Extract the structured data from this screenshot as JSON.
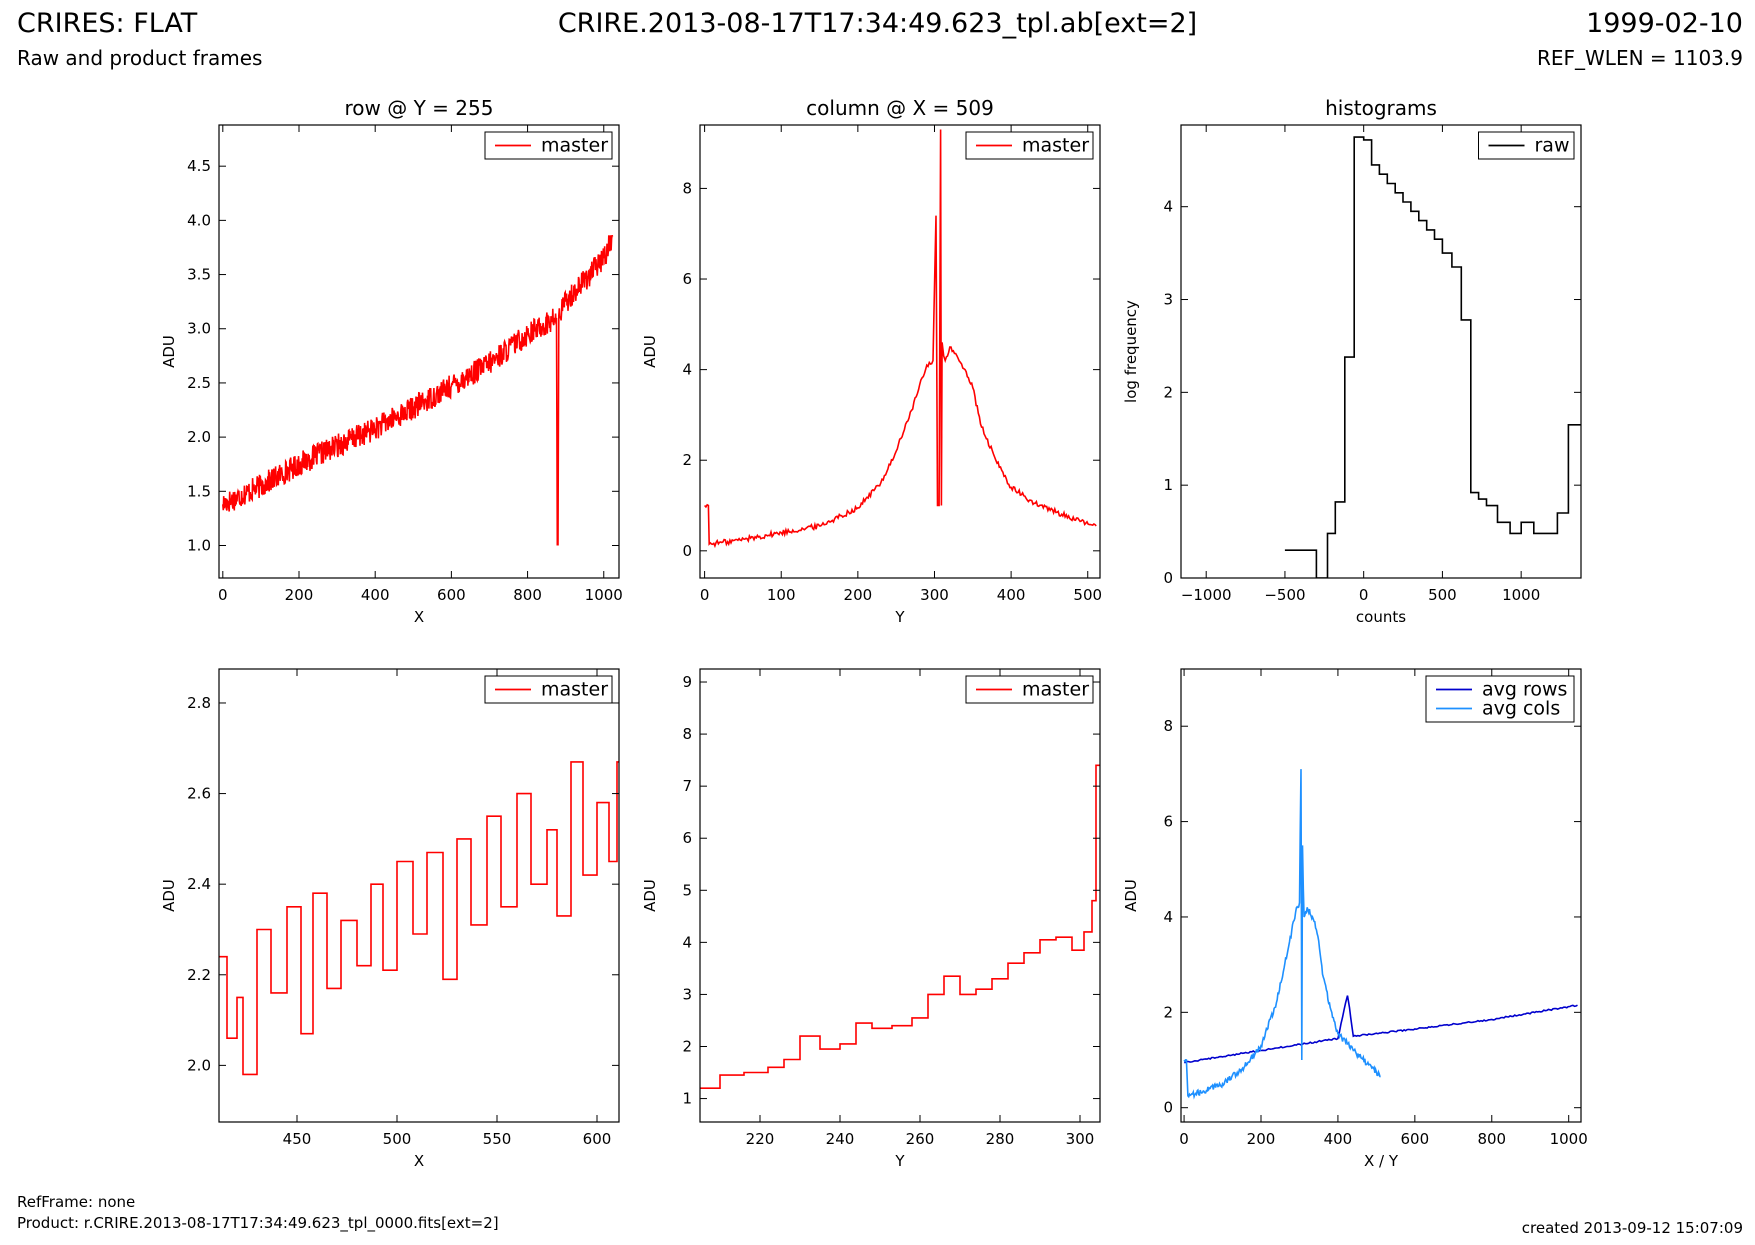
{
  "header": {
    "title_left": "CRIRES: FLAT",
    "subtitle_left": "Raw and product frames",
    "title_center": "CRIRE.2013-08-17T17:34:49.623_tpl.ab[ext=2]",
    "title_right": "1999-02-10",
    "subtitle_right": "REF_WLEN = 1103.9"
  },
  "footer": {
    "ref_frame": "RefFrame: none",
    "product": "Product: r.CRIRE.2013-08-17T17:34:49.623_tpl_0000.fits[ext=2]",
    "created": "created 2013-09-12 15:07:09"
  },
  "colors": {
    "master": "#ff0000",
    "raw": "#000000",
    "avg_rows": "#0000cd",
    "avg_cols": "#1e90ff"
  },
  "chart_data": [
    {
      "id": "row",
      "type": "line",
      "title": "row @ Y = 255",
      "xlabel": "X",
      "ylabel": "ADU",
      "xlim": [
        -10,
        1040
      ],
      "ylim": [
        0.7,
        4.88
      ],
      "xticks": [
        0,
        200,
        400,
        600,
        800,
        1000
      ],
      "yticks": [
        1.0,
        1.5,
        2.0,
        2.5,
        3.0,
        3.5,
        4.0,
        4.5
      ],
      "ytick_labels": [
        "1.0",
        "1.5",
        "2.0",
        "2.5",
        "3.0",
        "3.5",
        "4.0",
        "4.5"
      ],
      "legend": "top-right",
      "series": [
        {
          "name": "master",
          "color": "#ff0000",
          "x": [
            0,
            100,
            200,
            300,
            400,
            500,
            600,
            700,
            800,
            876,
            878,
            880,
            882,
            900,
            1000,
            1023
          ],
          "y": [
            1.38,
            1.55,
            1.75,
            1.92,
            2.08,
            2.27,
            2.47,
            2.68,
            2.95,
            3.1,
            1.0,
            1.0,
            3.12,
            3.25,
            3.65,
            3.85
          ]
        }
      ]
    },
    {
      "id": "column",
      "type": "line",
      "title": "column @ X = 509",
      "xlabel": "Y",
      "ylabel": "ADU",
      "xlim": [
        -6,
        516
      ],
      "ylim": [
        -0.6,
        9.4
      ],
      "xticks": [
        0,
        100,
        200,
        300,
        400,
        500
      ],
      "yticks": [
        0,
        2,
        4,
        6,
        8
      ],
      "legend": "top-right",
      "series": [
        {
          "name": "master",
          "color": "#ff0000",
          "x": [
            0,
            5,
            6,
            30,
            60,
            100,
            150,
            200,
            230,
            250,
            270,
            290,
            298,
            302,
            304,
            306,
            308,
            309,
            310,
            312,
            314,
            320,
            340,
            350,
            360,
            380,
            400,
            430,
            460,
            490,
            511
          ],
          "y": [
            1.0,
            1.0,
            0.15,
            0.2,
            0.28,
            0.4,
            0.55,
            0.95,
            1.5,
            2.2,
            3.1,
            4.1,
            4.2,
            7.4,
            1.0,
            1.0,
            9.3,
            1.0,
            4.6,
            4.3,
            4.2,
            4.5,
            4.0,
            3.6,
            2.8,
            2.0,
            1.4,
            1.05,
            0.85,
            0.65,
            0.55
          ]
        }
      ]
    },
    {
      "id": "histograms",
      "type": "line",
      "title": "histograms",
      "xlabel": "counts",
      "ylabel": "log frequency",
      "xlim": [
        -1160,
        1380
      ],
      "ylim": [
        0,
        4.88
      ],
      "xticks": [
        -1000,
        -500,
        0,
        500,
        1000
      ],
      "xtick_labels": [
        "−1000",
        "−500",
        "0",
        "500",
        "1000"
      ],
      "yticks": [
        0,
        1,
        2,
        3,
        4
      ],
      "legend": "top-right",
      "series": [
        {
          "name": "raw",
          "color": "#000000",
          "step": true,
          "x": [
            -500,
            -300,
            -230,
            -180,
            -120,
            -60,
            0,
            50,
            100,
            150,
            200,
            250,
            300,
            350,
            400,
            450,
            500,
            560,
            620,
            680,
            730,
            780,
            850,
            930,
            1000,
            1080,
            1230,
            1300,
            1380
          ],
          "y": [
            0.3,
            0,
            0.48,
            0.82,
            2.38,
            4.75,
            4.72,
            4.45,
            4.35,
            4.25,
            4.15,
            4.05,
            3.95,
            3.85,
            3.75,
            3.65,
            3.5,
            3.35,
            2.78,
            0.92,
            0.85,
            0.78,
            0.6,
            0.48,
            0.6,
            0.48,
            0.7,
            1.65,
            1.65
          ]
        }
      ]
    },
    {
      "id": "row-zoom",
      "type": "line",
      "title": "",
      "xlabel": "X",
      "ylabel": "ADU",
      "xlim": [
        411,
        611
      ],
      "ylim": [
        1.875,
        2.875
      ],
      "xticks": [
        450,
        500,
        550,
        600
      ],
      "yticks": [
        2.0,
        2.2,
        2.4,
        2.6,
        2.8
      ],
      "ytick_labels": [
        "2.0",
        "2.2",
        "2.4",
        "2.6",
        "2.8"
      ],
      "legend": "top-right",
      "series": [
        {
          "name": "master",
          "color": "#ff0000",
          "step": true,
          "x": [
            411,
            415,
            420,
            423,
            430,
            437,
            445,
            452,
            458,
            465,
            472,
            480,
            487,
            493,
            500,
            508,
            515,
            523,
            530,
            537,
            545,
            552,
            560,
            567,
            575,
            580,
            587,
            593,
            600,
            606,
            610
          ],
          "y": [
            2.24,
            2.06,
            2.15,
            1.98,
            2.3,
            2.16,
            2.35,
            2.07,
            2.38,
            2.17,
            2.32,
            2.22,
            2.4,
            2.21,
            2.45,
            2.29,
            2.47,
            2.19,
            2.5,
            2.31,
            2.55,
            2.35,
            2.6,
            2.4,
            2.52,
            2.33,
            2.67,
            2.42,
            2.58,
            2.45,
            2.67
          ]
        }
      ]
    },
    {
      "id": "column-zoom",
      "type": "line",
      "title": "",
      "xlabel": "Y",
      "ylabel": "ADU",
      "xlim": [
        205,
        305
      ],
      "ylim": [
        0.55,
        9.25
      ],
      "xticks": [
        220,
        240,
        260,
        280,
        300
      ],
      "yticks": [
        1,
        2,
        3,
        4,
        5,
        6,
        7,
        8,
        9
      ],
      "legend": "top-right",
      "series": [
        {
          "name": "master",
          "color": "#ff0000",
          "step": true,
          "x": [
            205,
            210,
            216,
            222,
            226,
            230,
            235,
            240,
            244,
            248,
            253,
            258,
            262,
            266,
            270,
            274,
            278,
            282,
            286,
            290,
            294,
            298,
            301,
            303,
            304
          ],
          "y": [
            1.2,
            1.45,
            1.5,
            1.6,
            1.75,
            2.2,
            1.95,
            2.05,
            2.45,
            2.35,
            2.4,
            2.55,
            3.0,
            3.35,
            3.0,
            3.1,
            3.3,
            3.6,
            3.8,
            4.05,
            4.1,
            3.85,
            4.2,
            4.8,
            7.4
          ]
        }
      ]
    },
    {
      "id": "averages",
      "type": "line",
      "title": "",
      "xlabel": "X / Y",
      "ylabel": "ADU",
      "xlim": [
        -8,
        1032
      ],
      "ylim": [
        -0.3,
        9.2
      ],
      "xticks": [
        0,
        200,
        400,
        600,
        800,
        1000
      ],
      "yticks": [
        0,
        2,
        4,
        6,
        8
      ],
      "legend": "top-right",
      "series": [
        {
          "name": "avg rows",
          "color": "#0000cd",
          "x": [
            0,
            200,
            400,
            420,
            425,
            430,
            440,
            600,
            800,
            1023
          ],
          "y": [
            0.95,
            1.2,
            1.45,
            2.2,
            2.35,
            2.1,
            1.5,
            1.65,
            1.85,
            2.15
          ]
        },
        {
          "name": "avg cols",
          "color": "#1e90ff",
          "x": [
            0,
            6,
            10,
            50,
            100,
            150,
            200,
            240,
            270,
            290,
            300,
            304,
            306,
            308,
            310,
            312,
            320,
            340,
            350,
            360,
            380,
            400,
            440,
            480,
            500,
            511
          ],
          "y": [
            1.0,
            1.0,
            0.25,
            0.35,
            0.5,
            0.8,
            1.3,
            2.2,
            3.3,
            4.1,
            4.3,
            7.1,
            1.0,
            5.5,
            4.6,
            4.0,
            4.2,
            3.9,
            3.5,
            2.8,
            2.1,
            1.55,
            1.2,
            0.9,
            0.75,
            0.65
          ]
        }
      ]
    }
  ]
}
